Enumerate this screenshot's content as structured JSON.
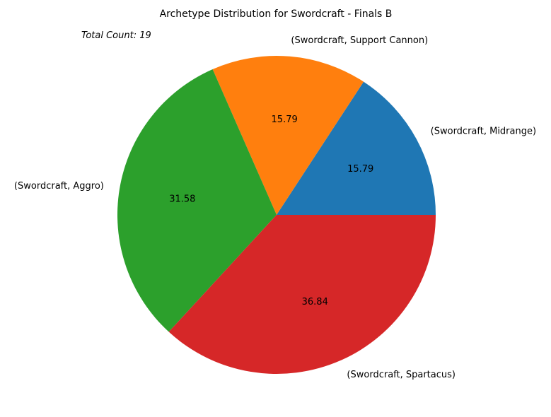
{
  "chart_data": {
    "type": "pie",
    "title": "Archetype Distribution for Swordcraft - Finals B",
    "annotation": "Total Count: 19",
    "categories": [
      "(Swordcraft, Midrange)",
      "(Swordcraft, Support Cannon)",
      "(Swordcraft, Aggro)",
      "(Swordcraft, Spartacus)"
    ],
    "values": [
      15.79,
      15.79,
      31.58,
      36.84
    ],
    "value_labels": [
      "15.79",
      "15.79",
      "31.58",
      "36.84"
    ],
    "colors": [
      "#1f77b4",
      "#ff7f0e",
      "#2ca02c",
      "#d62728"
    ],
    "start_angle": 0,
    "direction": "counterclockwise",
    "legend": "none"
  }
}
